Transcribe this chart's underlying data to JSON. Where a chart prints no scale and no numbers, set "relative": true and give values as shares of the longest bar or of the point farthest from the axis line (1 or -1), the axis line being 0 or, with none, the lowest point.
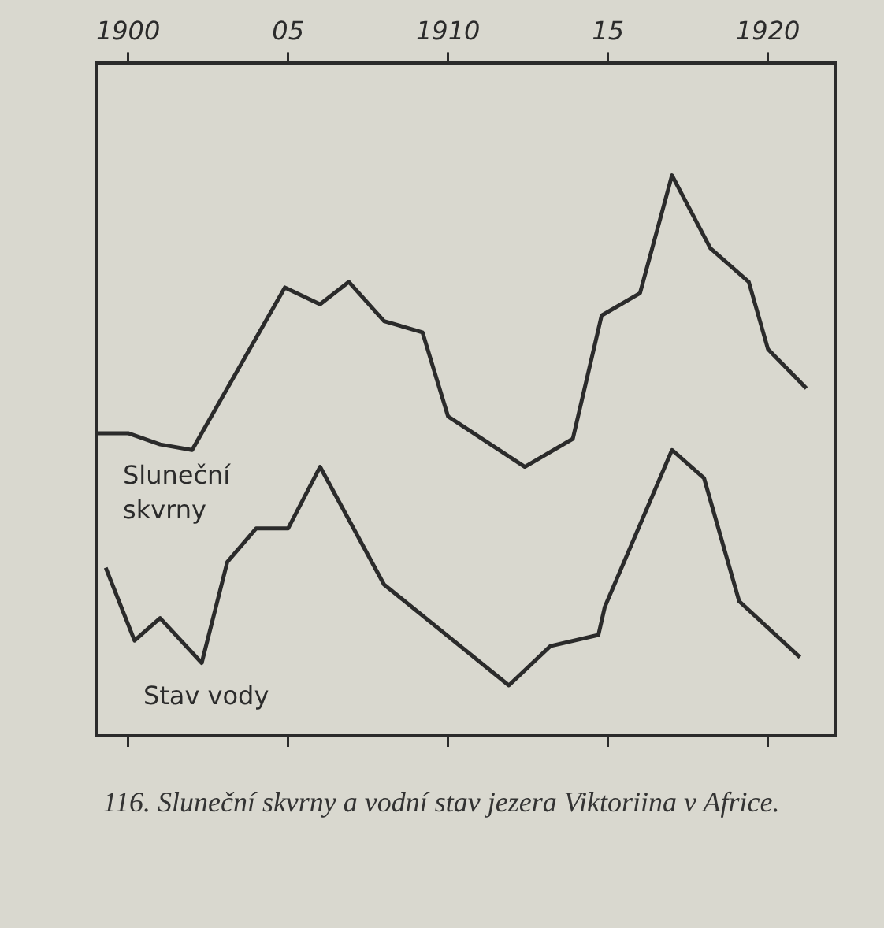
{
  "chart_data": {
    "type": "line",
    "relative": true,
    "marker": "none",
    "grid": false,
    "legend": false,
    "xlim": [
      1899,
      1922.1
    ],
    "xticks": [
      {
        "value": 1900,
        "label": "1900"
      },
      {
        "value": 1905,
        "label": "05"
      },
      {
        "value": 1910,
        "label": "1910"
      },
      {
        "value": 1915,
        "label": "15"
      },
      {
        "value": 1920,
        "label": "1920"
      }
    ],
    "series": [
      {
        "name": "Sluneční skvrny",
        "color": "#2b2b2b",
        "x": [
          1899,
          1900,
          1901,
          1902,
          1904.9,
          1906,
          1906.9,
          1908,
          1909.2,
          1910,
          1912.4,
          1913.9,
          1914.8,
          1916,
          1917,
          1918.2,
          1919.4,
          1920,
          1921.2
        ],
        "values": [
          0.54,
          0.54,
          0.52,
          0.51,
          0.8,
          0.77,
          0.81,
          0.74,
          0.72,
          0.57,
          0.48,
          0.53,
          0.75,
          0.79,
          1,
          0.87,
          0.81,
          0.69,
          0.62
        ]
      },
      {
        "name": "Stav vody",
        "color": "#2b2b2b",
        "x": [
          1899.3,
          1900.2,
          1901,
          1902.3,
          1903.1,
          1904,
          1905,
          1906,
          1908,
          1911.9,
          1913.2,
          1914.7,
          1914.9,
          1917,
          1918,
          1919.1,
          1921
        ],
        "values": [
          0.3,
          0.17,
          0.21,
          0.13,
          0.31,
          0.37,
          0.37,
          0.48,
          0.27,
          0.09,
          0.16,
          0.18,
          0.23,
          0.51,
          0.46,
          0.24,
          0.14
        ]
      }
    ],
    "annotations": [
      "116. Sluneční skvrny a vodní stav jezera Viktoriina v Africe."
    ]
  }
}
